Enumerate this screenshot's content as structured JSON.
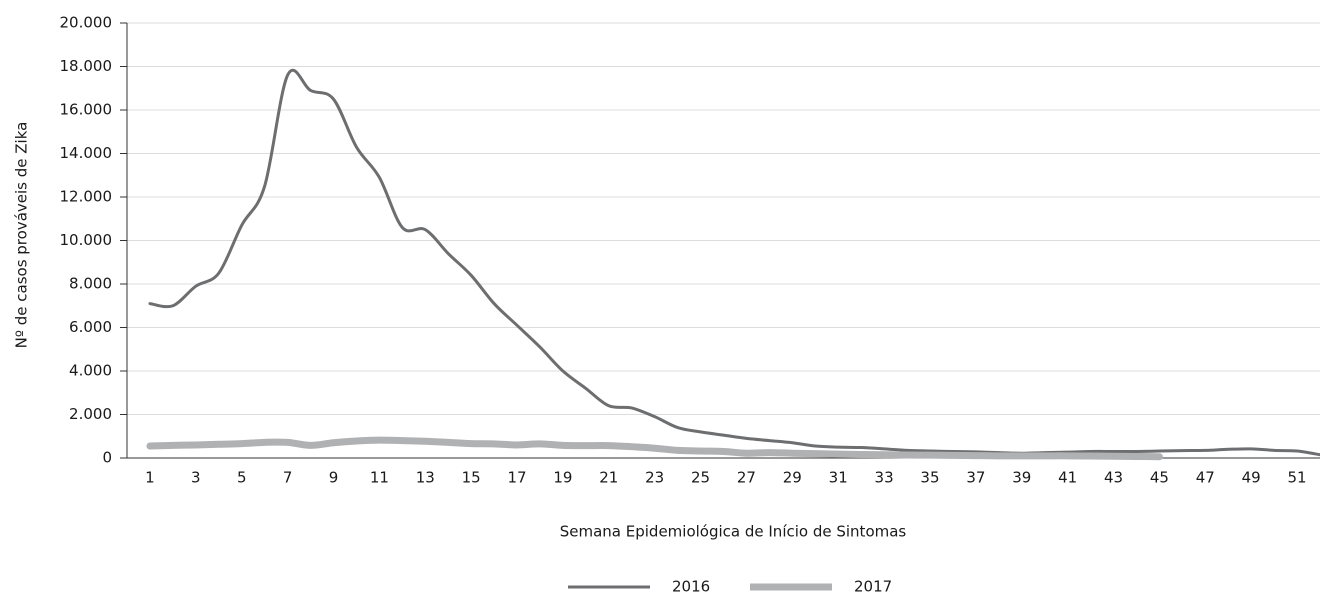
{
  "chart_data": {
    "type": "line",
    "y_label": "Nº de casos prováveis de Zika",
    "x_label": "Semana Epidemiológica de Início de Sintomas",
    "x": [
      1,
      2,
      3,
      4,
      5,
      6,
      7,
      8,
      9,
      10,
      11,
      12,
      13,
      14,
      15,
      16,
      17,
      18,
      19,
      20,
      21,
      22,
      23,
      24,
      25,
      26,
      27,
      28,
      29,
      30,
      31,
      32,
      33,
      34,
      35,
      36,
      37,
      38,
      39,
      40,
      41,
      42,
      43,
      44,
      45,
      46,
      47,
      48,
      49,
      50,
      51,
      52
    ],
    "xlim": [
      0,
      52
    ],
    "xticks": [
      1,
      3,
      5,
      7,
      9,
      11,
      13,
      15,
      17,
      19,
      21,
      23,
      25,
      27,
      29,
      31,
      33,
      35,
      37,
      39,
      41,
      43,
      45,
      47,
      49,
      51
    ],
    "ylim": [
      0,
      20000
    ],
    "yticks": [
      0,
      {
        "value": 2000,
        "label": "2.000"
      },
      {
        "value": 4000,
        "label": "4.000"
      },
      {
        "value": 6000,
        "label": "6.000"
      },
      {
        "value": 8000,
        "label": "8.000"
      },
      {
        "value": 10000,
        "label": "10.000"
      },
      {
        "value": 12000,
        "label": "12.000"
      },
      {
        "value": 14000,
        "label": "14.000"
      },
      {
        "value": 16000,
        "label": "16.000"
      },
      {
        "value": 18000,
        "label": "18.000"
      },
      {
        "value": 20000,
        "label": "20.000"
      }
    ],
    "grid": true,
    "series": [
      {
        "name": "2016",
        "color": "#6d6e70",
        "values": [
          7100,
          7000,
          7900,
          8500,
          10700,
          12500,
          17600,
          16900,
          16500,
          14300,
          12900,
          10600,
          10500,
          9400,
          8400,
          7100,
          6100,
          5100,
          4000,
          3200,
          2400,
          2300,
          1900,
          1400,
          1200,
          1050,
          900,
          800,
          700,
          550,
          500,
          480,
          420,
          350,
          320,
          300,
          280,
          250,
          220,
          250,
          270,
          300,
          300,
          300,
          320,
          340,
          350,
          400,
          420,
          350,
          320,
          150
        ]
      },
      {
        "name": "2017",
        "color": "#b0b1b3",
        "values": [
          550,
          580,
          600,
          630,
          660,
          720,
          720,
          580,
          700,
          780,
          820,
          800,
          770,
          720,
          660,
          650,
          600,
          650,
          580,
          570,
          570,
          520,
          450,
          350,
          320,
          300,
          220,
          250,
          220,
          200,
          180,
          160,
          150,
          140,
          130,
          120,
          110,
          100,
          100,
          100,
          100,
          90,
          80,
          70,
          60,
          null,
          null,
          null,
          null,
          null,
          null,
          null
        ]
      }
    ]
  }
}
